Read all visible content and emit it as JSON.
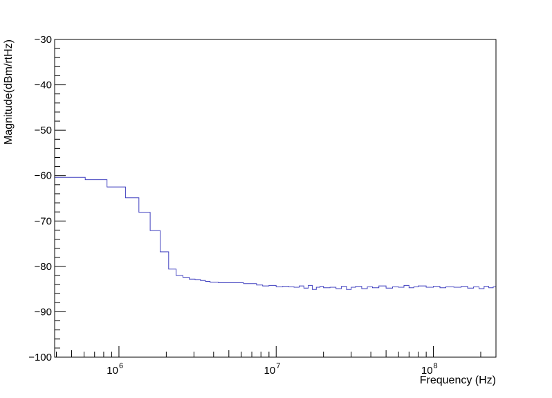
{
  "chart_data": {
    "type": "line",
    "title": "",
    "xlabel": "Frequency (Hz)",
    "ylabel": "Magnitude(dBm/rtHz)",
    "x_scale": "log",
    "xlim": [
      390000,
      250000000
    ],
    "ylim": [
      -100,
      -30
    ],
    "grid": false,
    "line_color": "#3f3fbf",
    "x_ticks": [
      {
        "value": 1000000,
        "base": "10",
        "exp": "6"
      },
      {
        "value": 10000000,
        "base": "10",
        "exp": "7"
      },
      {
        "value": 100000000,
        "base": "10",
        "exp": "8"
      }
    ],
    "y_ticks": [
      {
        "value": -30,
        "label": "−30"
      },
      {
        "value": -40,
        "label": "−40"
      },
      {
        "value": -50,
        "label": "−50"
      },
      {
        "value": -60,
        "label": "−60"
      },
      {
        "value": -70,
        "label": "−70"
      },
      {
        "value": -80,
        "label": "−80"
      },
      {
        "value": -90,
        "label": "−90"
      },
      {
        "value": -100,
        "label": "−100"
      }
    ],
    "series": [
      {
        "style": "step",
        "x": [
          390000,
          610000,
          840000,
          1100000,
          1340000,
          1580000,
          1830000,
          2070000,
          2310000,
          2550000,
          2800000,
          3050000,
          3300000,
          3550000,
          3800000,
          4300000,
          5000000,
          5600000,
          6200000,
          6800000,
          7500000,
          8200000,
          9000000,
          10000000,
          11000000,
          12000000,
          13000000,
          14000000,
          15000000,
          16000000,
          17000000,
          18000000,
          19000000,
          20000000,
          22000000,
          24000000,
          26000000,
          28000000,
          30000000,
          32000000,
          35000000,
          38000000,
          41000000,
          45000000,
          50000000,
          55000000,
          60000000,
          65000000,
          70000000,
          75000000,
          80000000,
          90000000,
          100000000,
          110000000,
          120000000,
          135000000,
          150000000,
          165000000,
          180000000,
          195000000,
          210000000,
          225000000,
          240000000,
          250000000
        ],
        "y": [
          -60.4,
          -60.9,
          -62.5,
          -64.9,
          -68.1,
          -72.1,
          -76.8,
          -80.6,
          -82.0,
          -82.4,
          -82.8,
          -82.9,
          -83.1,
          -83.3,
          -83.5,
          -83.6,
          -83.6,
          -83.6,
          -83.8,
          -83.8,
          -84.1,
          -84.3,
          -84.2,
          -84.5,
          -84.4,
          -84.5,
          -84.6,
          -84.3,
          -84.8,
          -84.2,
          -85.1,
          -84.6,
          -84.4,
          -84.7,
          -84.6,
          -84.9,
          -84.4,
          -85.1,
          -84.6,
          -84.4,
          -84.9,
          -84.5,
          -84.7,
          -84.3,
          -84.8,
          -84.5,
          -84.6,
          -84.2,
          -84.7,
          -84.5,
          -84.3,
          -84.6,
          -84.4,
          -84.7,
          -84.5,
          -84.6,
          -84.4,
          -84.8,
          -84.5,
          -84.9,
          -84.4,
          -84.7,
          -84.5,
          -84.6
        ]
      }
    ]
  }
}
